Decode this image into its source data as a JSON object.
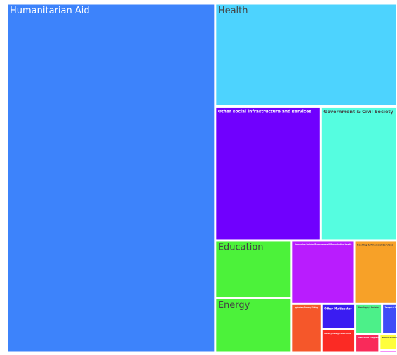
{
  "chart_data": {
    "type": "treemap",
    "categories": [
      "Humanitarian Aid",
      "Health",
      "Other social infrastructure and services",
      "Government & Civil Society",
      "Education",
      "Energy",
      "Population Policies/Programmes & Reproductive Health",
      "Banking & Financial Services",
      "Agriculture, Forestry, Fishing",
      "Other Multisector",
      "Industry, Mining, Construction",
      "Water Supply & Sanitation",
      "Transport & Storage",
      "Trade Policies & Regulations",
      "Business & Other Services",
      "Communications"
    ],
    "values": [
      144600,
      37200,
      28100,
      20300,
      8800,
      8300,
      7900,
      5400,
      2900,
      1700,
      1600,
      1600,
      900,
      900,
      560,
      100
    ],
    "colors": [
      "#3d83fb",
      "#4dd3fe",
      "#7000fe",
      "#55fde0",
      "#4cf23a",
      "#4cf23a",
      "#b91cfe",
      "#f7a128",
      "#f5572a",
      "#3a1cf2",
      "#fb2a24",
      "#4cf089",
      "#3f4cf7",
      "#f92a5a",
      "#fefe3c",
      "#ee1cf0"
    ]
  }
}
